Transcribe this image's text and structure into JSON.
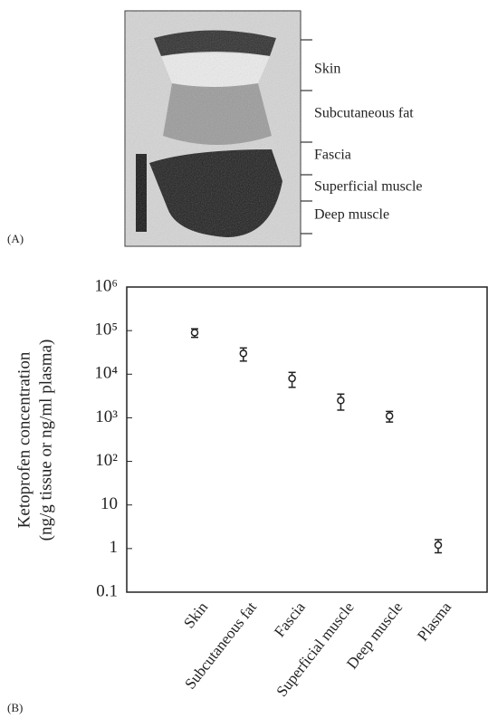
{
  "panel_a": {
    "label": "(A)",
    "layers": [
      "Skin",
      "Subcutaneous fat",
      "Fascia",
      "Superficial muscle",
      "Deep muscle"
    ]
  },
  "chart_data": {
    "type": "errorbar",
    "panel_label": "(B)",
    "ylabel": [
      "Ketoprofen concentration",
      "(ng/g tissue or ng/ml plasma)"
    ],
    "categories": [
      "Skin",
      "Subcutaneous fat",
      "Fascia",
      "Superficial muscle",
      "Deep muscle",
      "Plasma"
    ],
    "values": [
      90000,
      30000,
      8000,
      2500,
      1100,
      1.2
    ],
    "errors": [
      20000,
      10000,
      3000,
      1000,
      300,
      0.4
    ],
    "color": "#222222",
    "log_scale": true,
    "ylim": [
      0.1,
      1000000
    ],
    "yticks": [
      0.1,
      1,
      10,
      {
        "value": 100,
        "label": "10²"
      },
      {
        "value": 1000,
        "label": "10³"
      },
      {
        "value": 10000,
        "label": "10⁴"
      },
      {
        "value": 100000,
        "label": "10⁵"
      },
      {
        "value": 1000000,
        "label": "10⁶"
      }
    ]
  }
}
